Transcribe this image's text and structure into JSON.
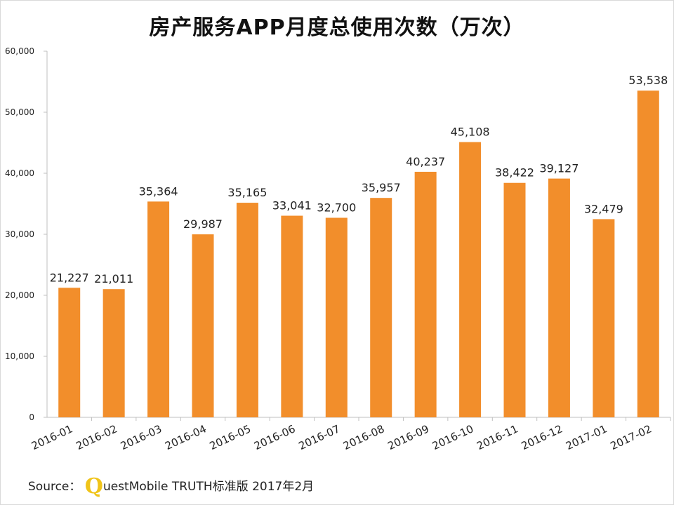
{
  "chart_data": {
    "type": "bar",
    "title": "房产服务APP月度总使用次数（万次）",
    "categories": [
      "2016-01",
      "2016-02",
      "2016-03",
      "2016-04",
      "2016-05",
      "2016-06",
      "2016-07",
      "2016-08",
      "2016-09",
      "2016-10",
      "2016-11",
      "2016-12",
      "2017-01",
      "2017-02"
    ],
    "values": [
      21227,
      21011,
      35364,
      29987,
      35165,
      33041,
      32700,
      35957,
      40237,
      45108,
      38422,
      39127,
      32479,
      53538
    ],
    "value_labels": [
      "21,227",
      "21,011",
      "35,364",
      "29,987",
      "35,165",
      "33,041",
      "32,700",
      "35,957",
      "40,237",
      "45,108",
      "38,422",
      "39,127",
      "32,479",
      "53,538"
    ],
    "yticks": [
      0,
      10000,
      20000,
      30000,
      40000,
      50000,
      60000
    ],
    "ytick_labels": [
      "0",
      "10,000",
      "20,000",
      "30,000",
      "40,000",
      "50,000",
      "60,000"
    ],
    "ylim": [
      0,
      60000
    ],
    "xlabel": "",
    "ylabel": "",
    "grid": false,
    "bar_color": "#f28e2b"
  },
  "source": {
    "prefix": "Source：",
    "q_letter": "Q",
    "text": "uestMobile TRUTH标准版 2017年2月"
  }
}
